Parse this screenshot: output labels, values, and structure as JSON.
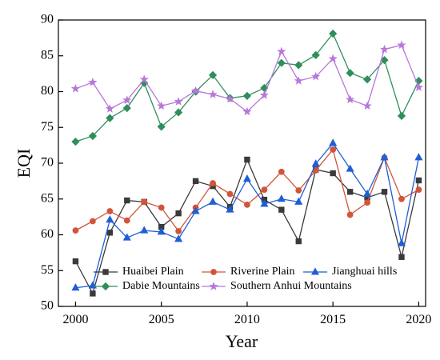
{
  "chart_data": {
    "type": "line",
    "xlabel": "Year",
    "ylabel": "EQI",
    "xlim": [
      1999,
      2020.4
    ],
    "ylim": [
      50,
      90
    ],
    "xticks": [
      2000,
      2005,
      2010,
      2015,
      2020
    ],
    "yticks": [
      50,
      55,
      60,
      65,
      70,
      75,
      80,
      85,
      90
    ],
    "legend_placement": "bottom-right",
    "grid": false,
    "x": [
      2000,
      2001,
      2002,
      2003,
      2004,
      2005,
      2006,
      2007,
      2008,
      2009,
      2010,
      2011,
      2012,
      2013,
      2014,
      2015,
      2016,
      2017,
      2018,
      2019,
      2020
    ],
    "series": [
      {
        "name": "Huaibei Plain",
        "color": "#3a3a3a",
        "marker": "square",
        "values": [
          56.3,
          51.8,
          60.3,
          64.8,
          64.6,
          61.1,
          63.0,
          67.5,
          66.8,
          63.9,
          70.5,
          64.9,
          63.5,
          59.1,
          69.1,
          68.6,
          66.0,
          65.2,
          66.0,
          56.9,
          67.6
        ]
      },
      {
        "name": "Riverine Plain",
        "color": "#d2553a",
        "marker": "circle",
        "values": [
          60.6,
          61.9,
          63.3,
          62.0,
          64.6,
          63.8,
          60.5,
          63.8,
          67.2,
          65.7,
          64.2,
          66.3,
          68.8,
          66.2,
          69.0,
          71.9,
          62.8,
          64.5,
          70.8,
          65.0,
          66.3
        ]
      },
      {
        "name": "Jianghuai hills",
        "color": "#1f5fd6",
        "marker": "triangle",
        "values": [
          52.6,
          52.9,
          62.1,
          59.6,
          60.6,
          60.4,
          59.4,
          63.3,
          64.6,
          63.5,
          67.8,
          64.3,
          65.0,
          64.6,
          69.9,
          72.8,
          69.2,
          65.7,
          70.8,
          58.8,
          70.8
        ]
      },
      {
        "name": "Dabie Mountains",
        "color": "#2e8f5b",
        "marker": "diamond",
        "values": [
          73.0,
          73.8,
          76.3,
          77.7,
          81.2,
          75.1,
          77.1,
          80.0,
          82.3,
          79.1,
          79.4,
          80.5,
          84.0,
          83.7,
          85.1,
          88.1,
          82.6,
          81.7,
          84.4,
          76.6,
          81.5
        ]
      },
      {
        "name": "Southern Anhui Mountains",
        "color": "#b877d9",
        "marker": "star",
        "values": [
          80.4,
          81.3,
          77.6,
          78.8,
          81.7,
          78.0,
          78.6,
          80.1,
          79.6,
          79.0,
          77.2,
          79.5,
          85.6,
          81.5,
          82.1,
          84.6,
          78.9,
          78.0,
          85.9,
          86.5,
          80.6
        ]
      }
    ]
  }
}
